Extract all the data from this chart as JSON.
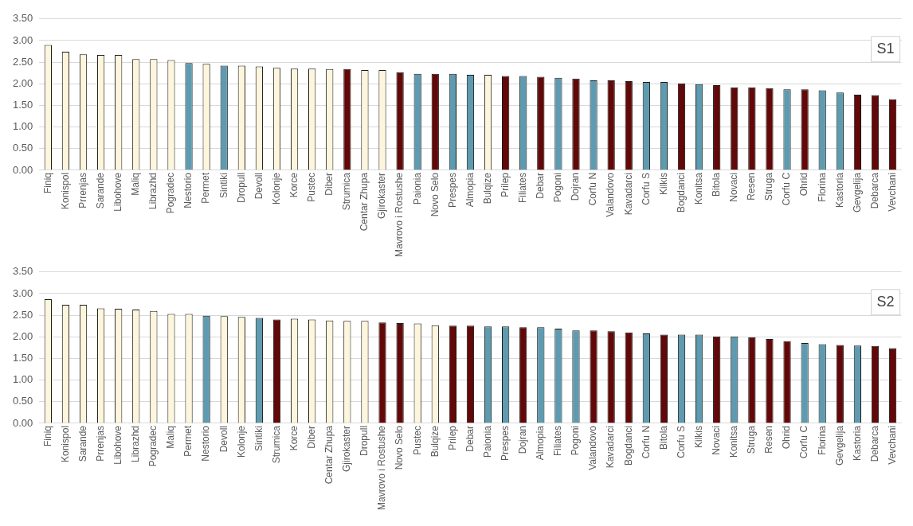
{
  "chart_data": [
    {
      "type": "bar",
      "categories": [
        "Finiq",
        "Konispol",
        "Prrenjas",
        "Sarande",
        "Libohove",
        "Maliq",
        "Librazhd",
        "Pogradec",
        "Nestorio",
        "Permet",
        "Sintiki",
        "Dropull",
        "Devoll",
        "Kolonje",
        "Korce",
        "Pustec",
        "Diber",
        "Strumica",
        "Centar Zhupa",
        "Gjirokaster",
        "Mavrovo i Rostushe",
        "Paionia",
        "Novo Selo",
        "Prespes",
        "Almopia",
        "Bulqize",
        "Prilep",
        "Filiates",
        "Debar",
        "Pogoni",
        "Dojran",
        "Corfu N",
        "Valandovo",
        "Kavadarci",
        "Corfu S",
        "Kilkis",
        "Bogdanci",
        "Konitsa",
        "Bitola",
        "Novaci",
        "Resen",
        "Struga",
        "Corfu C",
        "Ohrid",
        "Florina",
        "Kastoria",
        "Gevgelija",
        "Debarca",
        "Vevchani"
      ],
      "values": [
        2.9,
        2.74,
        2.68,
        2.67,
        2.67,
        2.57,
        2.57,
        2.55,
        2.48,
        2.46,
        2.42,
        2.42,
        2.4,
        2.37,
        2.35,
        2.35,
        2.34,
        2.34,
        2.32,
        2.32,
        2.27,
        2.23,
        2.23,
        2.23,
        2.21,
        2.21,
        2.18,
        2.18,
        2.16,
        2.14,
        2.12,
        2.08,
        2.08,
        2.06,
        2.04,
        2.04,
        2.01,
        1.99,
        1.97,
        1.92,
        1.92,
        1.9,
        1.87,
        1.87,
        1.85,
        1.8,
        1.75,
        1.74,
        1.64
      ],
      "colors": [
        "#fdf5dc",
        "#fdf5dc",
        "#fdf5dc",
        "#fdf5dc",
        "#fdf5dc",
        "#fdf5dc",
        "#fdf5dc",
        "#fdf5dc",
        "#5e9bb0",
        "#fdf5dc",
        "#5e9bb0",
        "#fdf5dc",
        "#fdf5dc",
        "#fdf5dc",
        "#fdf5dc",
        "#fdf5dc",
        "#fdf5dc",
        "#620808",
        "#fdf5dc",
        "#fdf5dc",
        "#620808",
        "#5e9bb0",
        "#620808",
        "#5e9bb0",
        "#5e9bb0",
        "#fdf5dc",
        "#620808",
        "#5e9bb0",
        "#620808",
        "#5e9bb0",
        "#620808",
        "#5e9bb0",
        "#620808",
        "#620808",
        "#5e9bb0",
        "#5e9bb0",
        "#620808",
        "#5e9bb0",
        "#620808",
        "#620808",
        "#620808",
        "#620808",
        "#5e9bb0",
        "#620808",
        "#5e9bb0",
        "#5e9bb0",
        "#620808",
        "#620808",
        "#620808"
      ],
      "ylim": [
        0,
        3.5
      ],
      "yticks": [
        {
          "value": 0,
          "label": "0.00"
        },
        {
          "value": 0.5,
          "label": "0.50"
        },
        {
          "value": 1,
          "label": "1.00"
        },
        {
          "value": 1.5,
          "label": "1.50"
        },
        {
          "value": 2,
          "label": "2.00"
        },
        {
          "value": 2.5,
          "label": "2.50"
        },
        {
          "value": 3,
          "label": "3.00"
        },
        {
          "value": 3.5,
          "label": "3.50"
        }
      ],
      "grid": "y",
      "legend": false,
      "annotations": [
        "S1"
      ]
    },
    {
      "type": "bar",
      "categories": [
        "Finiq",
        "Konispol",
        "Sarande",
        "Prrenjas",
        "Libohove",
        "Librazhd",
        "Pogradec",
        "Maliq",
        "Permet",
        "Nestorio",
        "Devoll",
        "Kolonje",
        "Sintiki",
        "Strumica",
        "Korce",
        "Diber",
        "Centar Zhupa",
        "Gjirokaster",
        "Dropull",
        "Mavrovo i Rostushe",
        "Novo Selo",
        "Pustec",
        "Bulqize",
        "Prilep",
        "Debar",
        "Paionia",
        "Prespes",
        "Dojran",
        "Almopia",
        "Filiates",
        "Pogoni",
        "Valandovo",
        "Kavadarci",
        "Bogdanci",
        "Corfu N",
        "Bitola",
        "Corfu S",
        "Kilkis",
        "Novaci",
        "Konitsa",
        "Struga",
        "Resen",
        "Ohrid",
        "Corfu C",
        "Florina",
        "Gevgelija",
        "Kastoria",
        "Debarca",
        "Vevchani"
      ],
      "values": [
        2.87,
        2.74,
        2.74,
        2.66,
        2.65,
        2.63,
        2.6,
        2.53,
        2.53,
        2.49,
        2.48,
        2.46,
        2.44,
        2.4,
        2.42,
        2.4,
        2.38,
        2.37,
        2.37,
        2.33,
        2.32,
        2.31,
        2.27,
        2.26,
        2.26,
        2.24,
        2.24,
        2.22,
        2.22,
        2.19,
        2.15,
        2.15,
        2.13,
        2.1,
        2.08,
        2.05,
        2.05,
        2.05,
        2.01,
        2.01,
        1.99,
        1.95,
        1.9,
        1.86,
        1.83,
        1.81,
        1.8,
        1.79,
        1.74
      ],
      "colors": [
        "#fdf5dc",
        "#fdf5dc",
        "#fdf5dc",
        "#fdf5dc",
        "#fdf5dc",
        "#fdf5dc",
        "#fdf5dc",
        "#fdf5dc",
        "#fdf5dc",
        "#5e9bb0",
        "#fdf5dc",
        "#fdf5dc",
        "#5e9bb0",
        "#620808",
        "#fdf5dc",
        "#fdf5dc",
        "#fdf5dc",
        "#fdf5dc",
        "#fdf5dc",
        "#620808",
        "#620808",
        "#fdf5dc",
        "#fdf5dc",
        "#620808",
        "#620808",
        "#5e9bb0",
        "#5e9bb0",
        "#620808",
        "#5e9bb0",
        "#5e9bb0",
        "#5e9bb0",
        "#620808",
        "#620808",
        "#620808",
        "#5e9bb0",
        "#620808",
        "#5e9bb0",
        "#5e9bb0",
        "#620808",
        "#5e9bb0",
        "#620808",
        "#620808",
        "#620808",
        "#5e9bb0",
        "#5e9bb0",
        "#620808",
        "#5e9bb0",
        "#620808",
        "#620808"
      ],
      "ylim": [
        0,
        3.5
      ],
      "yticks": [
        {
          "value": 0,
          "label": "0.00"
        },
        {
          "value": 0.5,
          "label": "0.50"
        },
        {
          "value": 1,
          "label": "1.00"
        },
        {
          "value": 1.5,
          "label": "1.50"
        },
        {
          "value": 2,
          "label": "2.00"
        },
        {
          "value": 2.5,
          "label": "2.50"
        },
        {
          "value": 3,
          "label": "3.00"
        },
        {
          "value": 3.5,
          "label": "3.50"
        }
      ],
      "grid": "y",
      "legend": false,
      "annotations": [
        "S2"
      ]
    }
  ]
}
